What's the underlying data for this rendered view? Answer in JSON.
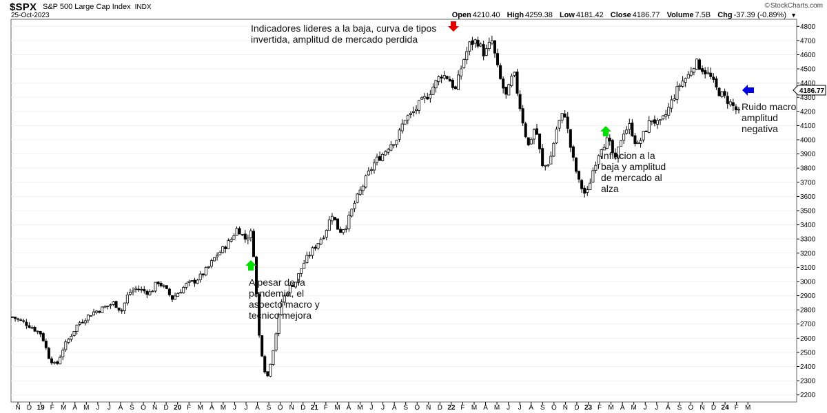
{
  "header": {
    "symbol": "$SPX",
    "description": "S&P 500 Large Cap Index",
    "exchange": "INDX",
    "date": "25-Oct-2023",
    "brand": "StockCharts.com",
    "ohlc": {
      "open_label": "Open",
      "open": "4210.40",
      "high_label": "High",
      "high": "4259.38",
      "low_label": "Low",
      "low": "4181.42",
      "close_label": "Close",
      "close": "4186.77",
      "volume_label": "Volume",
      "volume": "7.5B",
      "chg_label": "Chg",
      "chg": "-37.39 (-0.89%)"
    }
  },
  "chart_data": {
    "type": "candlestick",
    "title": "$SPX S&P 500 Large Cap Index",
    "ylim": [
      2150,
      4850
    ],
    "y_ticks": [
      2200,
      2300,
      2400,
      2500,
      2600,
      2700,
      2800,
      2900,
      3000,
      3100,
      3200,
      3300,
      3400,
      3500,
      3600,
      3700,
      3800,
      3900,
      4000,
      4100,
      4200,
      4300,
      4400,
      4500,
      4600,
      4700,
      4800
    ],
    "last_price_label": "4186.77",
    "month_labels": [
      "N",
      "D",
      "19",
      "F",
      "M",
      "A",
      "M",
      "J",
      "J",
      "A",
      "S",
      "O",
      "N",
      "D",
      "20",
      "F",
      "M",
      "A",
      "M",
      "J",
      "J",
      "A",
      "S",
      "O",
      "N",
      "D",
      "21",
      "F",
      "M",
      "A",
      "M",
      "J",
      "J",
      "A",
      "S",
      "O",
      "N",
      "D",
      "22",
      "F",
      "M",
      "A",
      "M",
      "J",
      "J",
      "A",
      "S",
      "O",
      "N",
      "D",
      "23",
      "F",
      "M",
      "A",
      "M",
      "J",
      "J",
      "A",
      "S",
      "O",
      "N",
      "D",
      "24",
      "F",
      "M"
    ],
    "bold_labels": [
      "19",
      "20",
      "21",
      "22",
      "23",
      "24"
    ],
    "price_path": [
      [
        0,
        2750
      ],
      [
        2,
        2700
      ],
      [
        4,
        2630
      ],
      [
        5,
        2470
      ],
      [
        6,
        2400
      ],
      [
        7,
        2530
      ],
      [
        9,
        2700
      ],
      [
        11,
        2780
      ],
      [
        12,
        2800
      ],
      [
        14,
        2850
      ],
      [
        15,
        2790
      ],
      [
        16,
        2920
      ],
      [
        17,
        2950
      ],
      [
        19,
        2920
      ],
      [
        20,
        3000
      ],
      [
        21,
        2950
      ],
      [
        22,
        2880
      ],
      [
        24,
        2980
      ],
      [
        25,
        3000
      ],
      [
        26,
        3040
      ],
      [
        27,
        3100
      ],
      [
        28,
        3180
      ],
      [
        29,
        3230
      ],
      [
        30,
        3290
      ],
      [
        31,
        3380
      ],
      [
        32,
        3300
      ],
      [
        33,
        3350
      ],
      [
        34,
        2600
      ],
      [
        35,
        2300
      ],
      [
        36,
        2550
      ],
      [
        37,
        2850
      ],
      [
        38,
        2950
      ],
      [
        39,
        3000
      ],
      [
        40,
        3120
      ],
      [
        41,
        3200
      ],
      [
        42,
        3270
      ],
      [
        43,
        3340
      ],
      [
        44,
        3480
      ],
      [
        45,
        3350
      ],
      [
        46,
        3400
      ],
      [
        47,
        3540
      ],
      [
        48,
        3650
      ],
      [
        49,
        3760
      ],
      [
        50,
        3850
      ],
      [
        51,
        3900
      ],
      [
        52,
        3970
      ],
      [
        53,
        4010
      ],
      [
        54,
        4150
      ],
      [
        55,
        4180
      ],
      [
        56,
        4250
      ],
      [
        57,
        4300
      ],
      [
        58,
        4380
      ],
      [
        59,
        4460
      ],
      [
        60,
        4440
      ],
      [
        61,
        4350
      ],
      [
        62,
        4550
      ],
      [
        63,
        4680
      ],
      [
        64,
        4700
      ],
      [
        65,
        4600
      ],
      [
        66,
        4700
      ],
      [
        67,
        4450
      ],
      [
        68,
        4300
      ],
      [
        69,
        4480
      ],
      [
        70,
        4200
      ],
      [
        71,
        3950
      ],
      [
        72,
        4100
      ],
      [
        73,
        3800
      ],
      [
        74,
        3850
      ],
      [
        75,
        4100
      ],
      [
        76,
        4200
      ],
      [
        77,
        3900
      ],
      [
        78,
        3700
      ],
      [
        79,
        3600
      ],
      [
        80,
        3800
      ],
      [
        81,
        3950
      ],
      [
        82,
        4000
      ],
      [
        83,
        3850
      ],
      [
        84,
        4050
      ],
      [
        85,
        4100
      ],
      [
        86,
        3950
      ],
      [
        87,
        4050
      ],
      [
        88,
        4150
      ],
      [
        89,
        4100
      ],
      [
        90,
        4180
      ],
      [
        91,
        4300
      ],
      [
        92,
        4400
      ],
      [
        93,
        4450
      ],
      [
        94,
        4550
      ],
      [
        95,
        4500
      ],
      [
        96,
        4450
      ],
      [
        97,
        4350
      ],
      [
        98,
        4300
      ],
      [
        99,
        4250
      ],
      [
        100,
        4187
      ]
    ],
    "annotations": [
      {
        "lines": [
          "Indicadores lideres a la baja, curva de tipos",
          "invertida, amplitud de mercado perdida"
        ],
        "arrow": "down",
        "arrow_color": "#e00000"
      },
      {
        "lines": [
          "A pesar de la",
          "pandemia, el",
          "aspecto macro y",
          "tecnico mejora"
        ],
        "arrow": "up",
        "arrow_color": "#00e000"
      },
      {
        "lines": [
          "Inflacion a la",
          "baja y amplitud",
          "de mercado al",
          "alza"
        ],
        "arrow": "up",
        "arrow_color": "#00e000"
      },
      {
        "lines": [
          "Ruido macro",
          "amplitud",
          "negativa"
        ],
        "arrow": "left",
        "arrow_color": "#0000e0"
      }
    ]
  }
}
